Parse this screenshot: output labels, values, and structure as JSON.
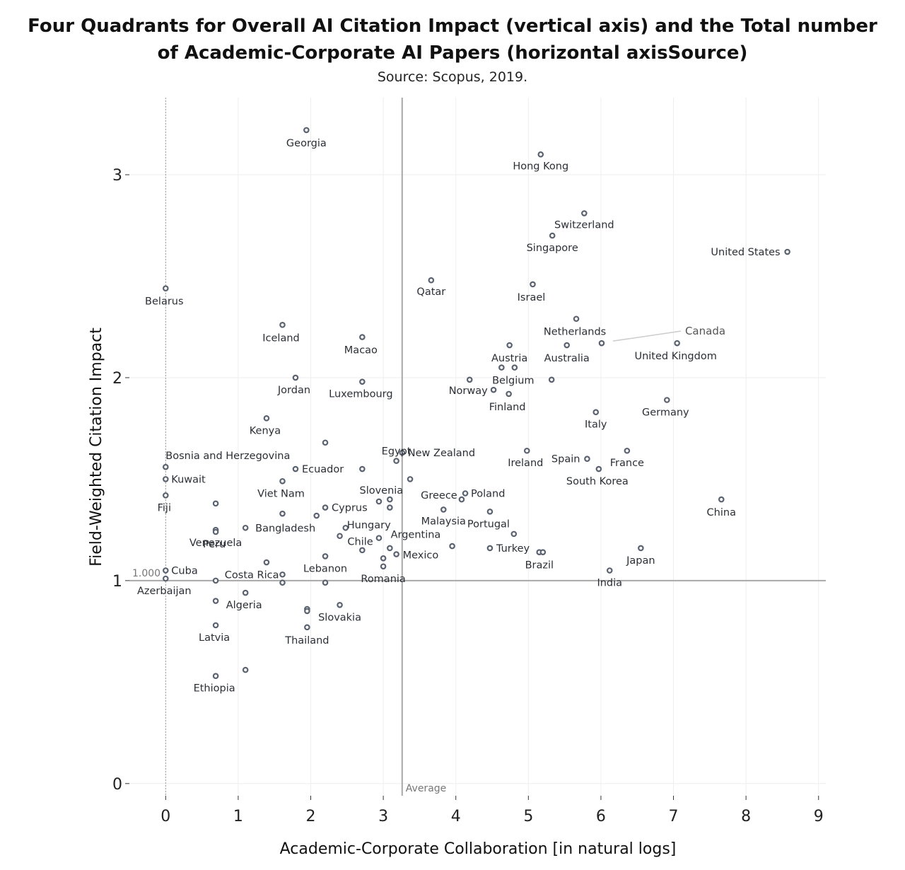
{
  "chart_data": {
    "type": "scatter",
    "title_lines": [
      "Four Quadrants for Overall AI Citation Impact (vertical axis) and the Total number",
      "of Academic-Corporate AI Papers (horizontal axisSource)"
    ],
    "subtitle": "Source: Scopus, 2019.",
    "xlabel": "Academic-Corporate Collaboration [in natural logs]",
    "ylabel": "Field-Weighted Citation Impact",
    "xlim": [
      -0.5,
      9.1
    ],
    "ylim": [
      -0.06,
      3.38
    ],
    "xticks": [
      "0",
      "1",
      "2",
      "3",
      "4",
      "5",
      "6",
      "7",
      "8",
      "9"
    ],
    "yticks": [
      "0",
      "1",
      "2",
      "3"
    ],
    "grid": true,
    "reference_lines": {
      "vertical_x": 3.26,
      "vertical_label": "Average",
      "horizontal_y": 1.0,
      "horizontal_label": "1.000"
    },
    "points": [
      {
        "label": "Georgia",
        "x": 1.94,
        "y": 3.22
      },
      {
        "label": "Hong Kong",
        "x": 5.17,
        "y": 3.1
      },
      {
        "label": "Switzerland",
        "x": 5.77,
        "y": 2.81
      },
      {
        "label": "Singapore",
        "x": 5.33,
        "y": 2.7
      },
      {
        "label": "United States",
        "x": 8.57,
        "y": 2.62
      },
      {
        "label": "Belarus",
        "x": 0.0,
        "y": 2.44
      },
      {
        "label": "Qatar",
        "x": 3.66,
        "y": 2.48
      },
      {
        "label": "Israel",
        "x": 5.06,
        "y": 2.46
      },
      {
        "label": "Iceland",
        "x": 1.61,
        "y": 2.26
      },
      {
        "label": "Macao",
        "x": 2.71,
        "y": 2.2
      },
      {
        "label": "Netherlands",
        "x": 5.66,
        "y": 2.29
      },
      {
        "label": "Canada",
        "x": 6.01,
        "y": 2.17
      },
      {
        "label": "Austria",
        "x": 4.74,
        "y": 2.16
      },
      {
        "label": "Australia",
        "x": 5.53,
        "y": 2.16
      },
      {
        "label": "United Kingdom",
        "x": 7.05,
        "y": 2.17
      },
      {
        "label": "",
        "x": 4.63,
        "y": 2.05
      },
      {
        "label": "Belgium",
        "x": 4.81,
        "y": 2.05
      },
      {
        "label": "Jordan",
        "x": 1.79,
        "y": 2.0
      },
      {
        "label": "Luxembourg",
        "x": 2.71,
        "y": 1.98
      },
      {
        "label": "Norway",
        "x": 4.19,
        "y": 1.99
      },
      {
        "label": "",
        "x": 5.32,
        "y": 1.99
      },
      {
        "label": "",
        "x": 4.52,
        "y": 1.94
      },
      {
        "label": "Finland",
        "x": 4.73,
        "y": 1.92
      },
      {
        "label": "Germany",
        "x": 6.91,
        "y": 1.89
      },
      {
        "label": "Kenya",
        "x": 1.39,
        "y": 1.8
      },
      {
        "label": "Italy",
        "x": 5.93,
        "y": 1.83
      },
      {
        "label": "",
        "x": 2.2,
        "y": 1.68
      },
      {
        "label": "Egypt",
        "x": 3.18,
        "y": 1.59
      },
      {
        "label": "New Zealand",
        "x": 3.26,
        "y": 1.63
      },
      {
        "label": "Ireland",
        "x": 4.98,
        "y": 1.64
      },
      {
        "label": "France",
        "x": 6.36,
        "y": 1.64
      },
      {
        "label": "Spain",
        "x": 5.81,
        "y": 1.6
      },
      {
        "label": "Bosnia and Herzegovina",
        "x": 0.0,
        "y": 1.56
      },
      {
        "label": "Ecuador",
        "x": 1.79,
        "y": 1.55
      },
      {
        "label": "",
        "x": 2.71,
        "y": 1.55
      },
      {
        "label": "South Korea",
        "x": 5.97,
        "y": 1.55
      },
      {
        "label": "Kuwait",
        "x": 0.0,
        "y": 1.5
      },
      {
        "label": "Viet Nam",
        "x": 1.61,
        "y": 1.49
      },
      {
        "label": "",
        "x": 3.37,
        "y": 1.5
      },
      {
        "label": "Poland",
        "x": 4.13,
        "y": 1.43
      },
      {
        "label": "Slovenia",
        "x": 3.09,
        "y": 1.4
      },
      {
        "label": "Greece",
        "x": 4.08,
        "y": 1.4
      },
      {
        "label": "",
        "x": 2.94,
        "y": 1.39
      },
      {
        "label": "China",
        "x": 7.66,
        "y": 1.4
      },
      {
        "label": "Fiji",
        "x": 0.0,
        "y": 1.42
      },
      {
        "label": "",
        "x": 0.69,
        "y": 1.38
      },
      {
        "label": "Cyprus",
        "x": 2.2,
        "y": 1.36
      },
      {
        "label": "",
        "x": 3.09,
        "y": 1.36
      },
      {
        "label": "Malaysia",
        "x": 3.83,
        "y": 1.35
      },
      {
        "label": "Portugal",
        "x": 4.47,
        "y": 1.34
      },
      {
        "label": "Venezuela",
        "x": 0.69,
        "y": 1.25
      },
      {
        "label": "",
        "x": 1.61,
        "y": 1.33
      },
      {
        "label": "Hungary",
        "x": 2.08,
        "y": 1.32
      },
      {
        "label": "Bangladesh",
        "x": 1.1,
        "y": 1.26
      },
      {
        "label": "",
        "x": 2.48,
        "y": 1.26
      },
      {
        "label": "",
        "x": 4.8,
        "y": 1.23
      },
      {
        "label": "Chile",
        "x": 2.4,
        "y": 1.22
      },
      {
        "label": "Argentina",
        "x": 2.94,
        "y": 1.21
      },
      {
        "label": "Peru",
        "x": 0.69,
        "y": 1.24
      },
      {
        "label": "",
        "x": 3.95,
        "y": 1.17
      },
      {
        "label": "Turkey",
        "x": 4.47,
        "y": 1.16
      },
      {
        "label": "",
        "x": 3.09,
        "y": 1.16
      },
      {
        "label": "",
        "x": 2.71,
        "y": 1.15
      },
      {
        "label": "Mexico",
        "x": 3.18,
        "y": 1.13
      },
      {
        "label": "",
        "x": 5.15,
        "y": 1.14
      },
      {
        "label": "Brazil",
        "x": 5.2,
        "y": 1.14
      },
      {
        "label": "Japan",
        "x": 6.55,
        "y": 1.16
      },
      {
        "label": "Lebanon",
        "x": 2.2,
        "y": 1.12
      },
      {
        "label": "",
        "x": 3.0,
        "y": 1.11
      },
      {
        "label": "",
        "x": 1.39,
        "y": 1.09
      },
      {
        "label": "Romania",
        "x": 3.0,
        "y": 1.07
      },
      {
        "label": "India",
        "x": 6.12,
        "y": 1.05
      },
      {
        "label": "Cuba",
        "x": 0.0,
        "y": 1.05
      },
      {
        "label": "Costa Rica",
        "x": 1.61,
        "y": 1.03
      },
      {
        "label": "Azerbaijan",
        "x": 0.0,
        "y": 1.01
      },
      {
        "label": "",
        "x": 0.69,
        "y": 1.0
      },
      {
        "label": "",
        "x": 1.61,
        "y": 0.99
      },
      {
        "label": "",
        "x": 2.2,
        "y": 0.99
      },
      {
        "label": "Algeria",
        "x": 1.1,
        "y": 0.94
      },
      {
        "label": "",
        "x": 0.69,
        "y": 0.9
      },
      {
        "label": "Slovakia",
        "x": 2.4,
        "y": 0.88
      },
      {
        "label": "",
        "x": 1.95,
        "y": 0.86
      },
      {
        "label": "",
        "x": 1.95,
        "y": 0.85
      },
      {
        "label": "Latvia",
        "x": 0.69,
        "y": 0.78
      },
      {
        "label": "Thailand",
        "x": 1.95,
        "y": 0.77
      },
      {
        "label": "",
        "x": 1.1,
        "y": 0.56
      },
      {
        "label": "Ethiopia",
        "x": 0.69,
        "y": 0.53
      }
    ]
  }
}
